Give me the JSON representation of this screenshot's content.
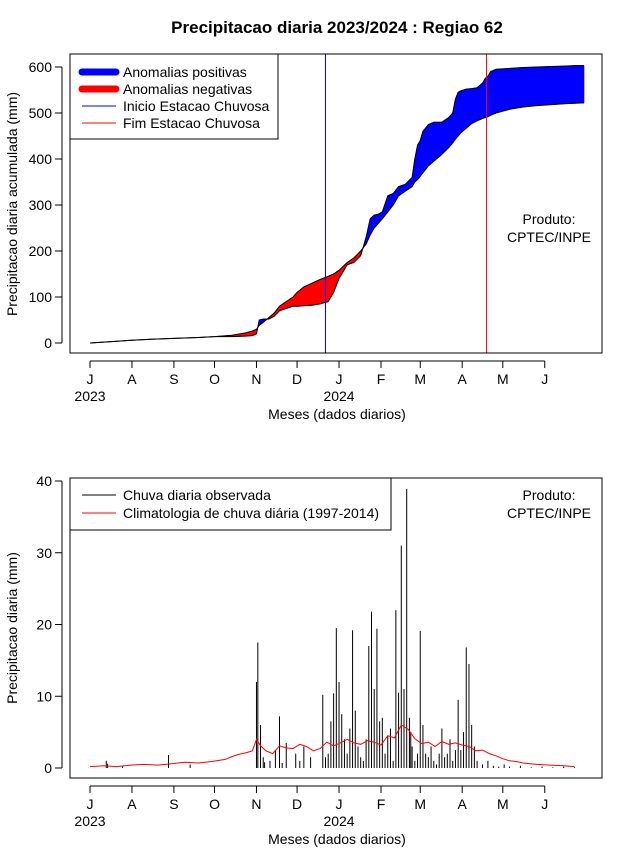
{
  "chart_data": [
    {
      "type": "area",
      "title": "Precipitacao diaria 2023/2024 : Regiao 62",
      "xlabel": "Meses (dados diarios)",
      "ylabel": "Precipitacao diaria acumulada (mm)",
      "xlim": [
        0,
        365
      ],
      "ylim": [
        0,
        600
      ],
      "y_ticks": [
        0,
        100,
        200,
        300,
        400,
        500,
        600
      ],
      "month_ticks": [
        {
          "label": "J",
          "day": 0
        },
        {
          "label": "A",
          "day": 31
        },
        {
          "label": "S",
          "day": 62
        },
        {
          "label": "O",
          "day": 92
        },
        {
          "label": "N",
          "day": 123
        },
        {
          "label": "D",
          "day": 153
        },
        {
          "label": "J",
          "day": 184
        },
        {
          "label": "F",
          "day": 215
        },
        {
          "label": "M",
          "day": 244
        },
        {
          "label": "A",
          "day": 275
        },
        {
          "label": "M",
          "day": 305
        },
        {
          "label": "J",
          "day": 336
        }
      ],
      "year_labels": [
        {
          "label": "2023",
          "day": 0
        },
        {
          "label": "2024",
          "day": 184
        }
      ],
      "inicio_estacao_day": 174,
      "fim_estacao_day": 293,
      "legend": [
        {
          "label": "Anomalias positivas",
          "color": "#0000ff",
          "kind": "band"
        },
        {
          "label": "Anomalias negativas",
          "color": "#ff0000",
          "kind": "band"
        },
        {
          "label": "Inicio Estacao Chuvosa",
          "color": "#0000ff",
          "kind": "line"
        },
        {
          "label": "Fim Estacao Chuvosa",
          "color": "#ff0000",
          "kind": "line"
        }
      ],
      "legend_position": "top-left",
      "annotation": [
        "Produto:",
        "CPTEC/INPE"
      ],
      "observed_cumulative": {
        "day": [
          0,
          10,
          20,
          31,
          45,
          62,
          80,
          92,
          105,
          115,
          120,
          123,
          125,
          128,
          132,
          136,
          140,
          145,
          150,
          153,
          158,
          164,
          170,
          176,
          180,
          184,
          190,
          195,
          200,
          204,
          207,
          210,
          213,
          216,
          220,
          224,
          228,
          233,
          238,
          240,
          242,
          244,
          246,
          250,
          254,
          260,
          265,
          268,
          270,
          272,
          274,
          278,
          282,
          286,
          290,
          292,
          294,
          296,
          300,
          310,
          320,
          330,
          340,
          350,
          358,
          365
        ],
        "value": [
          0,
          2,
          4,
          6,
          8,
          10,
          12,
          14,
          14,
          15,
          16,
          20,
          50,
          52,
          52,
          58,
          70,
          75,
          80,
          80,
          81,
          82,
          85,
          90,
          110,
          140,
          170,
          175,
          190,
          230,
          270,
          278,
          280,
          285,
          320,
          325,
          340,
          345,
          360,
          400,
          430,
          440,
          460,
          475,
          480,
          480,
          490,
          500,
          530,
          545,
          548,
          552,
          553,
          555,
          565,
          575,
          580,
          590,
          595,
          597,
          599,
          600,
          601,
          602,
          603,
          603
        ]
      },
      "climatology_cumulative": {
        "day": [
          0,
          10,
          20,
          31,
          45,
          62,
          80,
          92,
          105,
          115,
          120,
          123,
          125,
          128,
          132,
          136,
          140,
          145,
          150,
          153,
          158,
          164,
          170,
          176,
          180,
          184,
          190,
          195,
          200,
          204,
          207,
          210,
          213,
          216,
          220,
          224,
          228,
          233,
          238,
          240,
          242,
          244,
          246,
          250,
          254,
          260,
          265,
          268,
          270,
          272,
          274,
          278,
          282,
          286,
          290,
          292,
          294,
          296,
          300,
          310,
          320,
          330,
          340,
          350,
          358,
          365
        ],
        "value": [
          0,
          2,
          4,
          6,
          8,
          10,
          12,
          14,
          17,
          22,
          26,
          30,
          38,
          45,
          55,
          65,
          80,
          90,
          100,
          110,
          122,
          130,
          138,
          145,
          150,
          158,
          175,
          185,
          200,
          215,
          235,
          250,
          260,
          270,
          285,
          300,
          320,
          330,
          340,
          350,
          355,
          362,
          370,
          385,
          395,
          410,
          425,
          435,
          443,
          450,
          457,
          467,
          477,
          483,
          488,
          490,
          492,
          495,
          500,
          508,
          513,
          516,
          518,
          520,
          521,
          522
        ]
      }
    },
    {
      "type": "bar",
      "xlabel": "Meses (dados diarios)",
      "ylabel": "Precipitacao diaria (mm)",
      "xlim": [
        0,
        365
      ],
      "ylim": [
        0,
        40
      ],
      "y_ticks": [
        0,
        10,
        20,
        30,
        40
      ],
      "month_ticks": [
        {
          "label": "J",
          "day": 0
        },
        {
          "label": "A",
          "day": 31
        },
        {
          "label": "S",
          "day": 62
        },
        {
          "label": "O",
          "day": 92
        },
        {
          "label": "N",
          "day": 123
        },
        {
          "label": "D",
          "day": 153
        },
        {
          "label": "J",
          "day": 184
        },
        {
          "label": "F",
          "day": 215
        },
        {
          "label": "M",
          "day": 244
        },
        {
          "label": "A",
          "day": 275
        },
        {
          "label": "M",
          "day": 305
        },
        {
          "label": "J",
          "day": 336
        }
      ],
      "year_labels": [
        {
          "label": "2023",
          "day": 0
        },
        {
          "label": "2024",
          "day": 184
        }
      ],
      "legend": [
        {
          "label": "Chuva diaria observada",
          "color": "#000000",
          "kind": "line"
        },
        {
          "label": "Climatologia de chuva diária (1997-2014)",
          "color": "#ff0000",
          "kind": "line"
        }
      ],
      "legend_position": "top-left",
      "annotation": [
        "Produto:",
        "CPTEC/INPE"
      ],
      "daily_observed": {
        "day": [
          12,
          13,
          24,
          58,
          74,
          123,
          124,
          126,
          128,
          129,
          133,
          137,
          140,
          142,
          145,
          152,
          155,
          158,
          163,
          172,
          174,
          176,
          178,
          180,
          182,
          184,
          186,
          188,
          190,
          192,
          194,
          196,
          198,
          200,
          202,
          204,
          206,
          208,
          210,
          212,
          214,
          216,
          218,
          220,
          222,
          224,
          226,
          228,
          230,
          232,
          234,
          236,
          237,
          238,
          240,
          242,
          244,
          246,
          248,
          250,
          252,
          254,
          256,
          258,
          260,
          262,
          264,
          266,
          268,
          270,
          272,
          274,
          276,
          278,
          280,
          282,
          284,
          286,
          290,
          294,
          298,
          302,
          306,
          310,
          318,
          326,
          334,
          342,
          350,
          358
        ],
        "value": [
          1.0,
          0.6,
          0.3,
          1.8,
          0.5,
          12.0,
          17.5,
          6.0,
          1.5,
          0.8,
          1.0,
          2.5,
          7.2,
          0.7,
          3.5,
          2.0,
          1.0,
          3.0,
          1.5,
          10.2,
          1.5,
          2.0,
          6.5,
          10.4,
          19.5,
          12.0,
          7.5,
          4.0,
          2.0,
          5.5,
          19.2,
          8.0,
          3.0,
          1.5,
          1.0,
          4.0,
          17.0,
          21.8,
          11.0,
          19.4,
          6.5,
          7.0,
          2.0,
          4.5,
          5.5,
          1.0,
          22.0,
          10.5,
          31.0,
          11.0,
          38.9,
          7.0,
          5.0,
          3.0,
          1.0,
          2.0,
          19.1,
          6.0,
          2.0,
          1.5,
          3.0,
          1.0,
          0.5,
          2.0,
          5.5,
          1.5,
          2.0,
          4.0,
          1.0,
          2.5,
          9.5,
          2.5,
          5.0,
          16.8,
          14.5,
          6.0,
          3.0,
          1.0,
          0.5,
          1.0,
          0.3,
          0.2,
          0.5,
          0.2,
          0.3,
          0.1,
          0.2,
          0.1,
          0.2,
          0.1
        ]
      },
      "daily_climatology": {
        "day": [
          0,
          10,
          20,
          30,
          40,
          50,
          60,
          70,
          80,
          90,
          100,
          105,
          110,
          115,
          120,
          123,
          126,
          130,
          135,
          140,
          145,
          150,
          155,
          160,
          165,
          170,
          175,
          180,
          185,
          190,
          195,
          200,
          205,
          210,
          215,
          220,
          225,
          230,
          235,
          240,
          245,
          250,
          255,
          260,
          265,
          270,
          275,
          280,
          285,
          290,
          295,
          300,
          305,
          310,
          315,
          320,
          330,
          340,
          350,
          358
        ],
        "value": [
          0.2,
          0.3,
          0.2,
          0.4,
          0.5,
          0.4,
          0.6,
          0.8,
          0.7,
          0.9,
          1.2,
          1.6,
          1.9,
          2.1,
          2.4,
          4.0,
          3.1,
          2.4,
          2.0,
          3.1,
          2.8,
          2.7,
          3.3,
          3.0,
          2.4,
          2.7,
          3.6,
          3.1,
          3.5,
          4.0,
          3.5,
          3.3,
          3.8,
          3.6,
          3.2,
          4.5,
          4.2,
          6.0,
          5.4,
          4.1,
          3.4,
          3.6,
          3.0,
          3.7,
          3.3,
          3.5,
          3.2,
          3.0,
          2.4,
          2.5,
          2.0,
          1.7,
          1.3,
          1.0,
          0.9,
          0.7,
          0.5,
          0.4,
          0.3,
          0.2
        ]
      }
    }
  ]
}
